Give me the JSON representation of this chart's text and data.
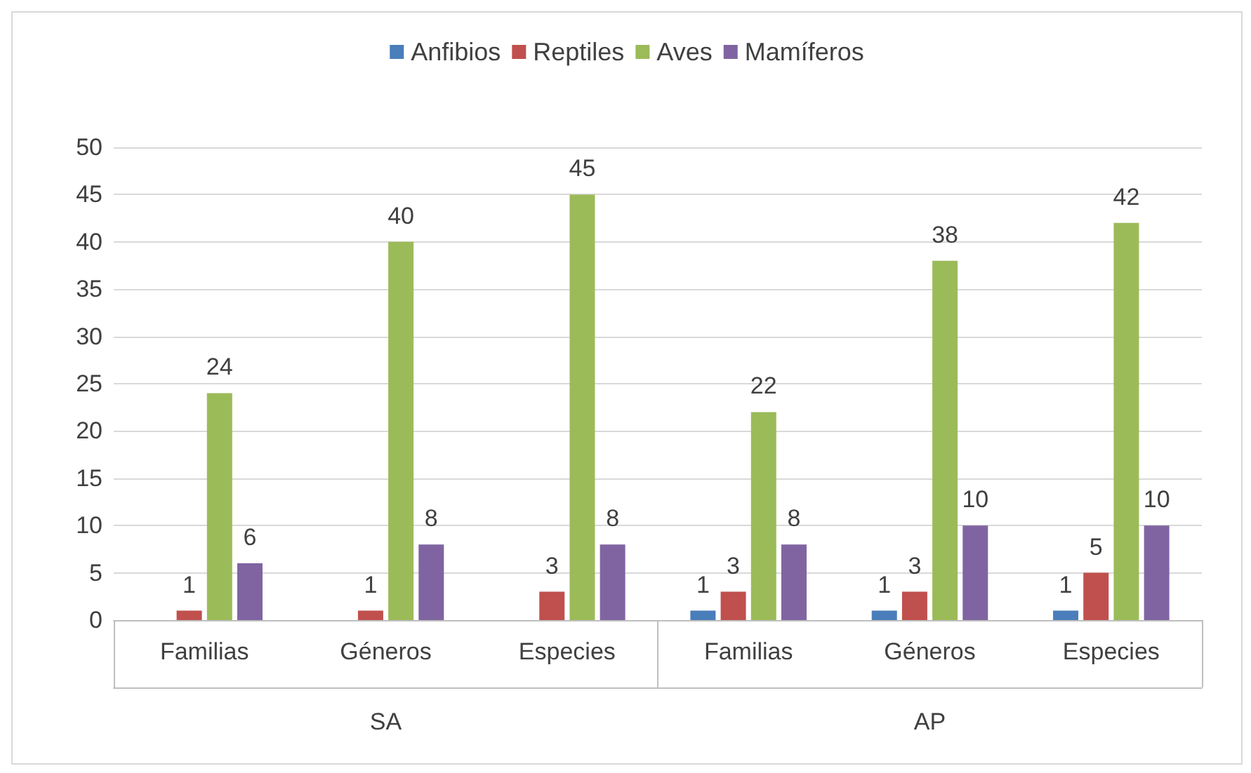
{
  "chart_data": {
    "type": "bar",
    "categories": [
      "Familias",
      "Géneros",
      "Especies",
      "Familias",
      "Géneros",
      "Especies"
    ],
    "annotations": [
      "SA",
      "AP"
    ],
    "series": [
      {
        "name": "Anfibios",
        "color": "#4a7ebb",
        "values": [
          null,
          null,
          null,
          1,
          1,
          1
        ]
      },
      {
        "name": "Reptiles",
        "color": "#c0504d",
        "values": [
          1,
          1,
          3,
          3,
          3,
          5
        ]
      },
      {
        "name": "Aves",
        "color": "#9bbb59",
        "values": [
          24,
          40,
          45,
          22,
          38,
          42
        ]
      },
      {
        "name": "Mamíferos",
        "color": "#8064a2",
        "values": [
          6,
          8,
          8,
          8,
          10,
          10
        ]
      }
    ],
    "ylim": [
      0,
      50
    ],
    "yticks": [
      0,
      5,
      10,
      15,
      20,
      25,
      30,
      35,
      40,
      45,
      50
    ],
    "grid": "y",
    "legend": "top",
    "data_labels": true
  }
}
